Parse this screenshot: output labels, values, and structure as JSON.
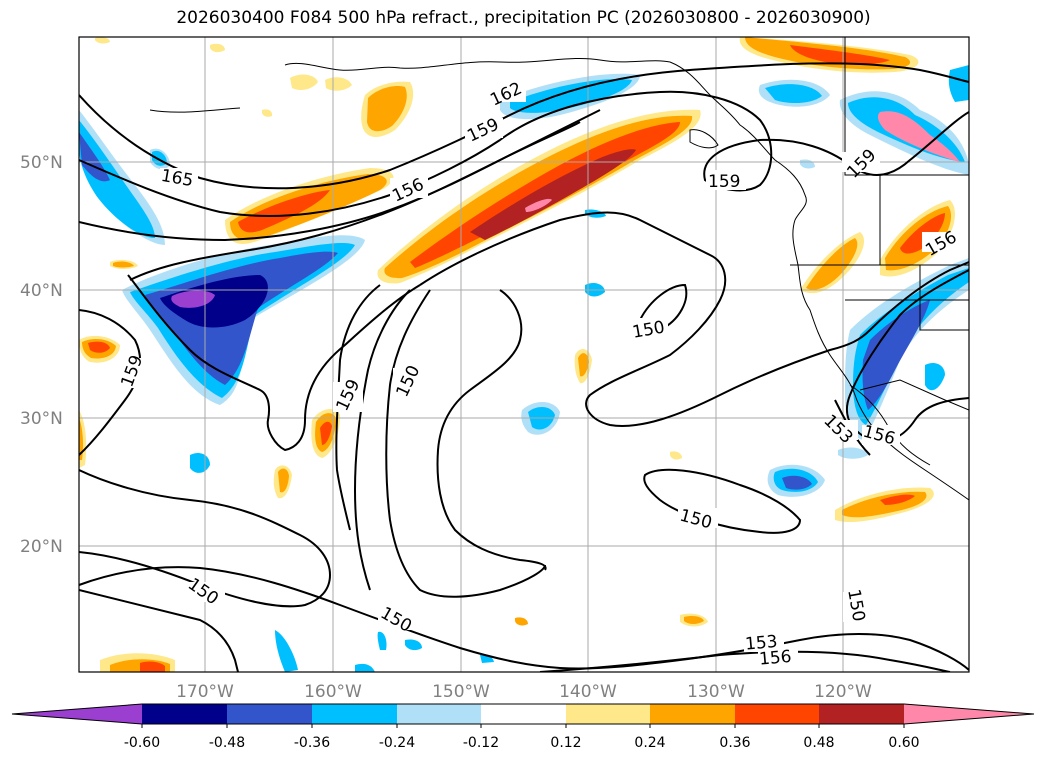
{
  "title": "2026030400 F084 500 hPa refract., precipitation PC (2026030800 - 2026030900)",
  "map": {
    "lat_labels": [
      {
        "label": "50°N",
        "lat": 50
      },
      {
        "label": "40°N",
        "lat": 40
      },
      {
        "label": "30°N",
        "lat": 30
      },
      {
        "label": "20°N",
        "lat": 20
      }
    ],
    "lon_labels": [
      {
        "label": "170°W",
        "lon": -170
      },
      {
        "label": "160°W",
        "lon": -160
      },
      {
        "label": "150°W",
        "lon": -150
      },
      {
        "label": "140°W",
        "lon": -140
      },
      {
        "label": "130°W",
        "lon": -130
      },
      {
        "label": "120°W",
        "lon": -120
      }
    ],
    "contour_labels": [
      "165",
      "162",
      "159",
      "156",
      "153",
      "150"
    ],
    "grid": true
  },
  "colorbar": {
    "ticks": [
      "-0.60",
      "-0.48",
      "-0.36",
      "-0.24",
      "-0.12",
      "0.12",
      "0.24",
      "0.36",
      "0.48",
      "0.60"
    ],
    "colors": [
      "#9b3fd1",
      "#00008b",
      "#3355cc",
      "#00bfff",
      "#b0e0f8",
      "#ffffff",
      "#ffe88a",
      "#ffa500",
      "#ff4500",
      "#b22222",
      "#ff88aa"
    ]
  }
}
